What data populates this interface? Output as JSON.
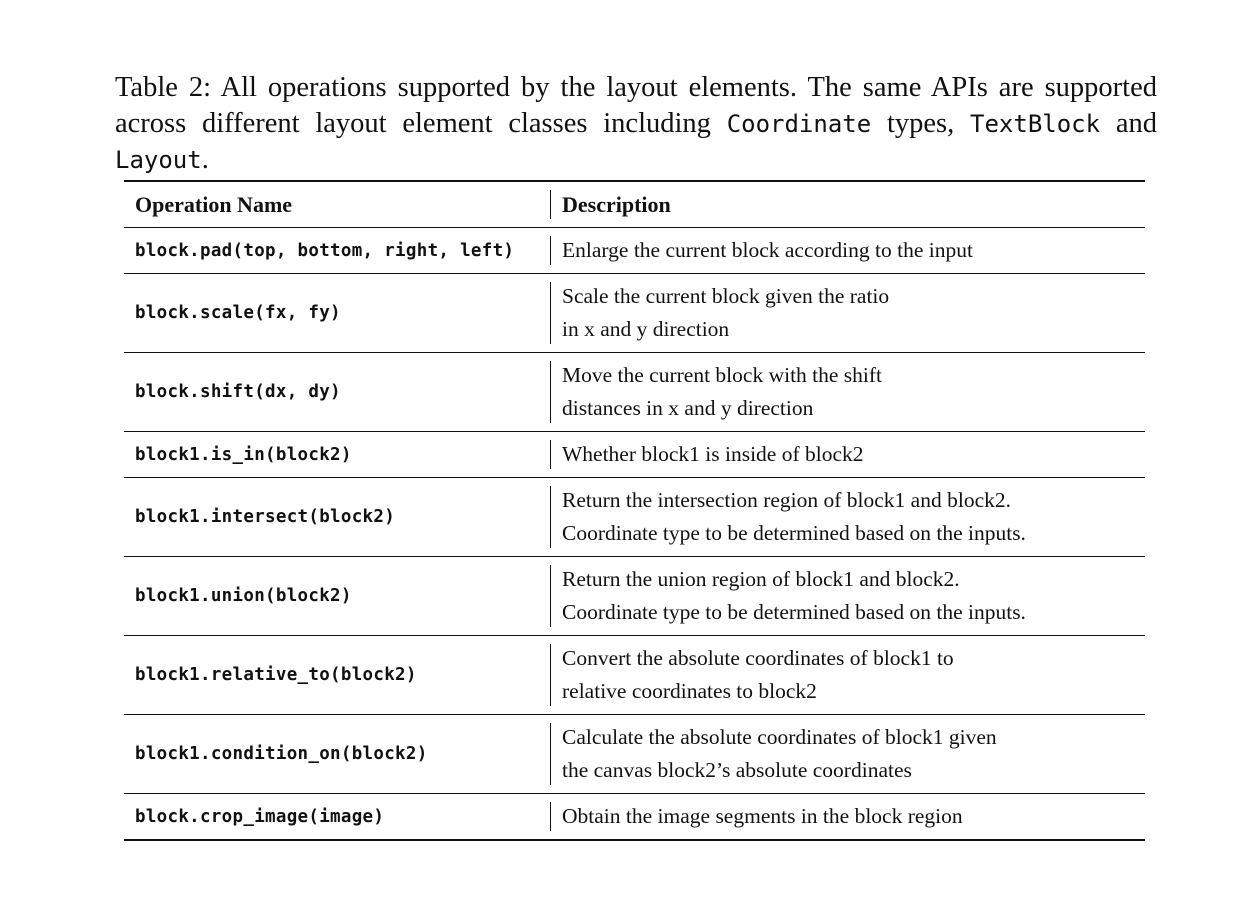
{
  "caption": {
    "part1": "Table 2: All operations supported by the layout elements. The same APIs are supported across different layout element classes including ",
    "code1": "Coordinate",
    "part2": " types, ",
    "code2": "TextBlock",
    "part3": " and ",
    "code3": "Layout",
    "part4": "."
  },
  "table": {
    "headers": {
      "operation": "Operation Name",
      "description": "Description"
    },
    "rows": [
      {
        "operation": "block.pad(top, bottom, right, left)",
        "description": [
          "Enlarge the current block according to the input"
        ]
      },
      {
        "operation": "block.scale(fx, fy)",
        "description": [
          "Scale the current block given the ratio",
          "in x and y direction"
        ]
      },
      {
        "operation": "block.shift(dx, dy)",
        "description": [
          "Move the current block with the shift",
          "distances in x and y direction"
        ]
      },
      {
        "operation": "block1.is_in(block2)",
        "description": [
          "Whether block1 is inside of block2"
        ]
      },
      {
        "operation": "block1.intersect(block2)",
        "description": [
          "Return the intersection region of block1 and block2.",
          "Coordinate type to be determined based on the inputs."
        ]
      },
      {
        "operation": "block1.union(block2)",
        "description": [
          "Return the union region of block1 and block2.",
          "Coordinate type to be determined based on the inputs."
        ]
      },
      {
        "operation": "block1.relative_to(block2)",
        "description": [
          "Convert the absolute coordinates of block1 to",
          "relative coordinates to block2"
        ]
      },
      {
        "operation": "block1.condition_on(block2)",
        "description": [
          "Calculate the absolute coordinates of block1 given",
          "the canvas block2’s absolute coordinates"
        ]
      },
      {
        "operation": "block.crop_image(image)",
        "description": [
          "Obtain the image segments in the block region"
        ]
      }
    ]
  }
}
